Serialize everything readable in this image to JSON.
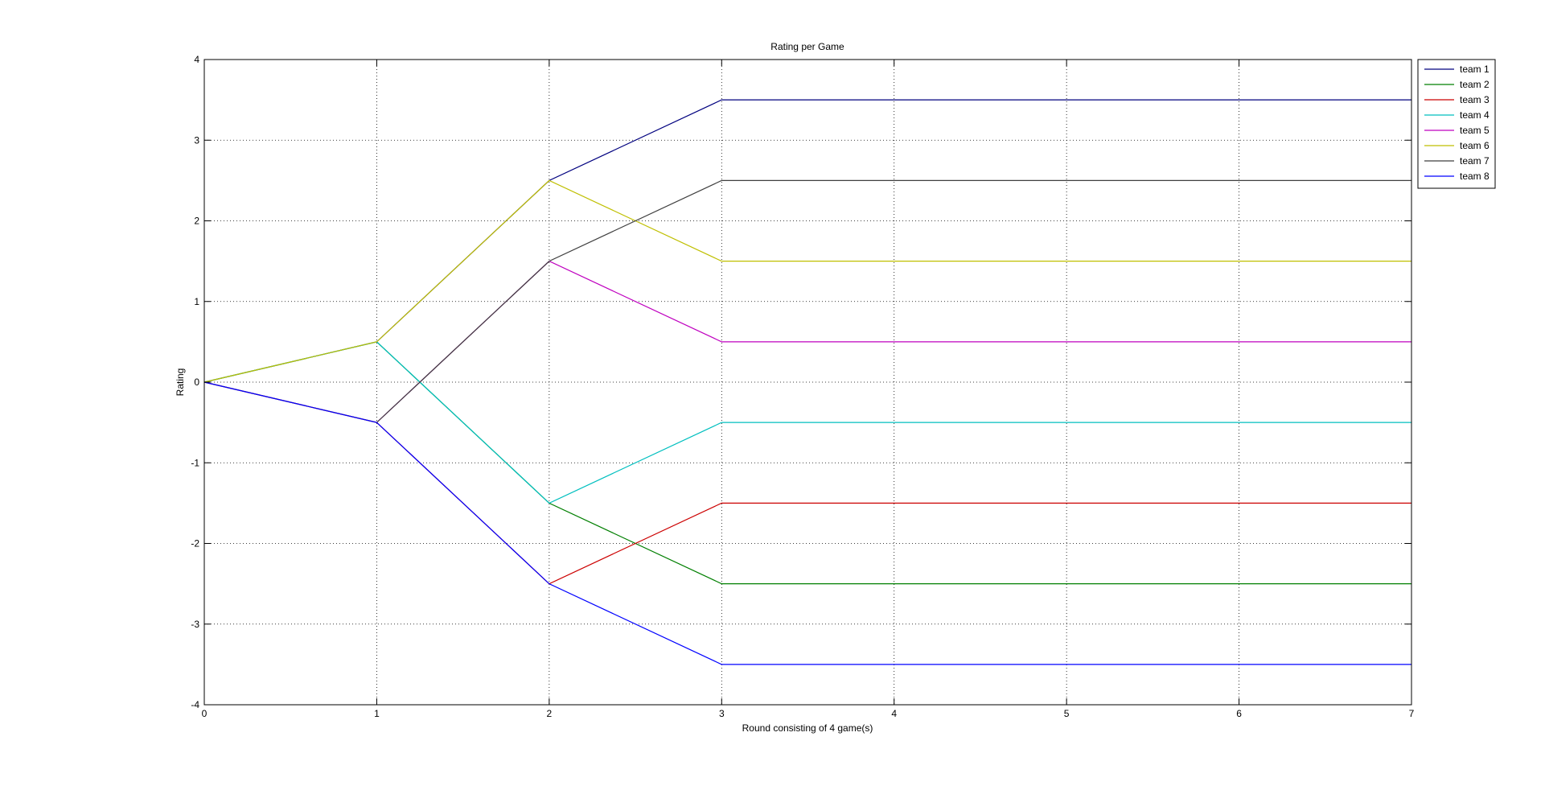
{
  "chart_data": {
    "type": "line",
    "title": "Rating per Game",
    "xlabel": "Round consisting of 4 game(s)",
    "ylabel": "Rating",
    "xlim": [
      0,
      7
    ],
    "ylim": [
      -4,
      4
    ],
    "xticks": [
      "0",
      "1",
      "2",
      "3",
      "4",
      "5",
      "6",
      "7"
    ],
    "yticks": [
      "4",
      "3",
      "2",
      "1",
      "0",
      "-1",
      "-2",
      "-3",
      "-4"
    ],
    "grid": true,
    "legend_position": "top-right",
    "x": [
      0,
      1,
      2,
      3,
      4,
      5,
      6,
      7
    ],
    "series": [
      {
        "name": "team 1",
        "color": "#00007f",
        "values": [
          0,
          0.5,
          2.5,
          3.5,
          3.5,
          3.5,
          3.5,
          3.5
        ]
      },
      {
        "name": "team 2",
        "color": "#007f00",
        "values": [
          0,
          0.5,
          -1.5,
          -2.5,
          -2.5,
          -2.5,
          -2.5,
          -2.5
        ]
      },
      {
        "name": "team 3",
        "color": "#cc0000",
        "values": [
          0,
          -0.5,
          -2.5,
          -1.5,
          -1.5,
          -1.5,
          -1.5,
          -1.5
        ]
      },
      {
        "name": "team 4",
        "color": "#00bfbf",
        "values": [
          0,
          0.5,
          -1.5,
          -0.5,
          -0.5,
          -0.5,
          -0.5,
          -0.5
        ]
      },
      {
        "name": "team 5",
        "color": "#bf00bf",
        "values": [
          0,
          -0.5,
          1.5,
          0.5,
          0.5,
          0.5,
          0.5,
          0.5
        ]
      },
      {
        "name": "team 6",
        "color": "#bfbf00",
        "values": [
          0,
          0.5,
          2.5,
          1.5,
          1.5,
          1.5,
          1.5,
          1.5
        ]
      },
      {
        "name": "team 7",
        "color": "#3f3f3f",
        "values": [
          0,
          -0.5,
          1.5,
          2.5,
          2.5,
          2.5,
          2.5,
          2.5
        ]
      },
      {
        "name": "team 8",
        "color": "#0000ff",
        "values": [
          0,
          -0.5,
          -2.5,
          -3.5,
          -3.5,
          -3.5,
          -3.5,
          -3.5
        ]
      }
    ]
  }
}
